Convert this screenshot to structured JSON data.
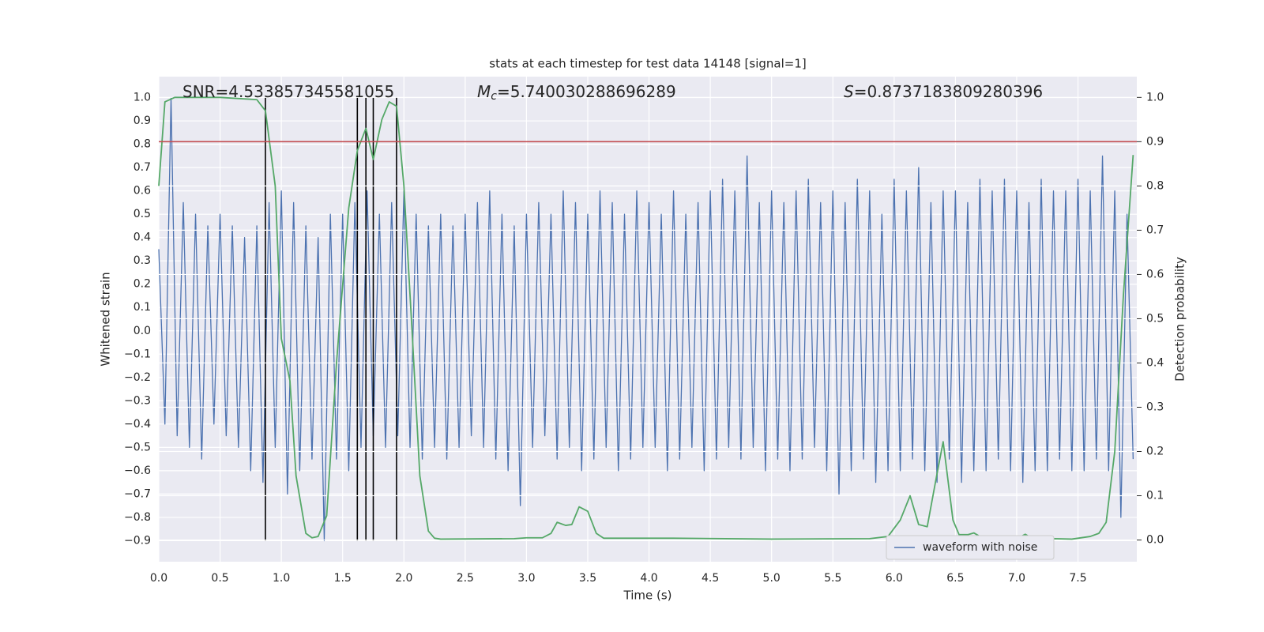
{
  "chart_data": {
    "type": "line",
    "title": "stats at each timestep for test data 14148 [signal=1]",
    "x_label": "Time (s)",
    "y_label": "Whitened strain",
    "y2_label": "Detection probability",
    "annotations": [
      {
        "text": "SNR=4.533857345581055"
      },
      {
        "symbol": "M",
        "subscript": "c",
        "text": "=5.740030288696289"
      },
      {
        "symbol": "S",
        "text": "=0.8737183809280396"
      }
    ],
    "xlim": [
      0,
      7.98
    ],
    "ylim": [
      -0.99,
      1.09
    ],
    "y2lim": [
      -0.049,
      1.047
    ],
    "xticks": [
      {
        "value": 0,
        "label": "0.0"
      },
      {
        "value": 0.5,
        "label": "0.5"
      },
      {
        "value": 1,
        "label": "1.0"
      },
      {
        "value": 1.5,
        "label": "1.5"
      },
      {
        "value": 2,
        "label": "2.0"
      },
      {
        "value": 2.5,
        "label": "2.5"
      },
      {
        "value": 3,
        "label": "3.0"
      },
      {
        "value": 3.5,
        "label": "3.5"
      },
      {
        "value": 4,
        "label": "4.0"
      },
      {
        "value": 4.5,
        "label": "4.5"
      },
      {
        "value": 5,
        "label": "5.0"
      },
      {
        "value": 5.5,
        "label": "5.5"
      },
      {
        "value": 6,
        "label": "6.0"
      },
      {
        "value": 6.5,
        "label": "6.5"
      },
      {
        "value": 7,
        "label": "7.0"
      },
      {
        "value": 7.5,
        "label": "7.5"
      }
    ],
    "yticks": [
      {
        "value": -0.9,
        "label": "−0.9"
      },
      {
        "value": -0.8,
        "label": "−0.8"
      },
      {
        "value": -0.7,
        "label": "−0.7"
      },
      {
        "value": -0.6,
        "label": "−0.6"
      },
      {
        "value": -0.5,
        "label": "−0.5"
      },
      {
        "value": -0.4,
        "label": "−0.4"
      },
      {
        "value": -0.3,
        "label": "−0.3"
      },
      {
        "value": -0.2,
        "label": "−0.2"
      },
      {
        "value": -0.1,
        "label": "−0.1"
      },
      {
        "value": 0,
        "label": "0.0"
      },
      {
        "value": 0.1,
        "label": "0.1"
      },
      {
        "value": 0.2,
        "label": "0.2"
      },
      {
        "value": 0.3,
        "label": "0.3"
      },
      {
        "value": 0.4,
        "label": "0.4"
      },
      {
        "value": 0.5,
        "label": "0.5"
      },
      {
        "value": 0.6,
        "label": "0.6"
      },
      {
        "value": 0.7,
        "label": "0.7"
      },
      {
        "value": 0.8,
        "label": "0.8"
      },
      {
        "value": 0.9,
        "label": "0.9"
      },
      {
        "value": 1,
        "label": "1.0"
      }
    ],
    "y2ticks": [
      {
        "value": 0,
        "label": "0.0"
      },
      {
        "value": 0.1,
        "label": "0.1"
      },
      {
        "value": 0.2,
        "label": "0.2"
      },
      {
        "value": 0.3,
        "label": "0.3"
      },
      {
        "value": 0.4,
        "label": "0.4"
      },
      {
        "value": 0.5,
        "label": "0.5"
      },
      {
        "value": 0.6,
        "label": "0.6"
      },
      {
        "value": 0.7,
        "label": "0.7"
      },
      {
        "value": 0.8,
        "label": "0.8"
      },
      {
        "value": 0.9,
        "label": "0.9"
      },
      {
        "value": 1,
        "label": "1.0"
      }
    ],
    "grid": true,
    "legend": "lower right",
    "threshold": 0.9,
    "threshold_color": "#c44e52",
    "vlines": [
      0.87,
      1.62,
      1.69,
      1.75,
      1.94
    ],
    "vline_color": "#000000",
    "series": [
      {
        "name": "waveform with noise",
        "color": "#4c72b0",
        "x": [
          0,
          0.05,
          0.1,
          0.15,
          0.2,
          0.25,
          0.3,
          0.35,
          0.4,
          0.45,
          0.5,
          0.55,
          0.6,
          0.65,
          0.7,
          0.75,
          0.8,
          0.85,
          0.9,
          0.95,
          1,
          1.05,
          1.1,
          1.15,
          1.2,
          1.25,
          1.3,
          1.35,
          1.4,
          1.45,
          1.5,
          1.55,
          1.6,
          1.65,
          1.7,
          1.75,
          1.8,
          1.85,
          1.9,
          1.95,
          2,
          2.05,
          2.1,
          2.15,
          2.2,
          2.25,
          2.3,
          2.35,
          2.4,
          2.45,
          2.5,
          2.55,
          2.6,
          2.65,
          2.7,
          2.75,
          2.8,
          2.85,
          2.9,
          2.95,
          3,
          3.05,
          3.1,
          3.15,
          3.2,
          3.25,
          3.3,
          3.35,
          3.4,
          3.45,
          3.5,
          3.55,
          3.6,
          3.65,
          3.7,
          3.75,
          3.8,
          3.85,
          3.9,
          3.95,
          4,
          4.05,
          4.1,
          4.15,
          4.2,
          4.25,
          4.3,
          4.35,
          4.4,
          4.45,
          4.5,
          4.55,
          4.6,
          4.65,
          4.7,
          4.75,
          4.8,
          4.85,
          4.9,
          4.95,
          5,
          5.05,
          5.1,
          5.15,
          5.2,
          5.25,
          5.3,
          5.35,
          5.4,
          5.45,
          5.5,
          5.55,
          5.6,
          5.65,
          5.7,
          5.75,
          5.8,
          5.85,
          5.9,
          5.95,
          6,
          6.05,
          6.1,
          6.15,
          6.2,
          6.25,
          6.3,
          6.35,
          6.4,
          6.45,
          6.5,
          6.55,
          6.6,
          6.65,
          6.7,
          6.75,
          6.8,
          6.85,
          6.9,
          6.95,
          7,
          7.05,
          7.1,
          7.15,
          7.2,
          7.25,
          7.3,
          7.35,
          7.4,
          7.45,
          7.5,
          7.55,
          7.6,
          7.65,
          7.7,
          7.75,
          7.8,
          7.85,
          7.9,
          7.95
        ],
        "values": [
          0.35,
          -0.4,
          1.0,
          -0.45,
          0.55,
          -0.5,
          0.5,
          -0.55,
          0.45,
          -0.4,
          0.5,
          -0.45,
          0.45,
          -0.5,
          0.4,
          -0.6,
          0.45,
          -0.65,
          0.55,
          -0.5,
          0.6,
          -0.7,
          0.55,
          -0.6,
          0.45,
          -0.55,
          0.4,
          -0.9,
          0.5,
          -0.55,
          0.5,
          -0.6,
          0.55,
          -0.5,
          0.6,
          -0.45,
          0.5,
          -0.5,
          0.55,
          -0.45,
          0.6,
          -0.5,
          0.5,
          -0.55,
          0.45,
          -0.5,
          0.5,
          -0.55,
          0.45,
          -0.5,
          0.5,
          -0.45,
          0.55,
          -0.5,
          0.6,
          -0.55,
          0.5,
          -0.6,
          0.45,
          -0.75,
          0.5,
          -0.5,
          0.55,
          -0.45,
          0.5,
          -0.55,
          0.6,
          -0.5,
          0.55,
          -0.6,
          0.5,
          -0.55,
          0.6,
          -0.5,
          0.55,
          -0.6,
          0.5,
          -0.55,
          0.6,
          -0.5,
          0.55,
          -0.5,
          0.5,
          -0.6,
          0.6,
          -0.55,
          0.5,
          -0.5,
          0.55,
          -0.6,
          0.6,
          -0.55,
          0.65,
          -0.5,
          0.6,
          -0.55,
          0.75,
          -0.5,
          0.55,
          -0.6,
          0.6,
          -0.55,
          0.55,
          -0.6,
          0.6,
          -0.55,
          0.65,
          -0.5,
          0.55,
          -0.6,
          0.6,
          -0.7,
          0.55,
          -0.6,
          0.65,
          -0.55,
          0.6,
          -0.65,
          0.5,
          -0.6,
          0.65,
          -0.6,
          0.6,
          -0.55,
          0.7,
          -0.6,
          0.55,
          -0.65,
          0.6,
          -0.55,
          0.6,
          -0.65,
          0.55,
          -0.6,
          0.65,
          -0.6,
          0.6,
          -0.55,
          0.65,
          -0.6,
          0.6,
          -0.65,
          0.55,
          -0.6,
          0.65,
          -0.6,
          0.6,
          -0.55,
          0.6,
          -0.6,
          0.65,
          -0.6,
          0.6,
          -0.55,
          0.75,
          -0.6,
          0.6,
          -0.8,
          0.5,
          -0.55
        ]
      },
      {
        "color": "#55a868",
        "axis": "y2",
        "x": [
          0,
          0.05,
          0.13,
          0.5,
          0.8,
          0.87,
          0.95,
          1,
          1.07,
          1.12,
          1.2,
          1.25,
          1.3,
          1.37,
          1.45,
          1.55,
          1.62,
          1.69,
          1.75,
          1.82,
          1.88,
          1.94,
          2,
          2.07,
          2.13,
          2.2,
          2.25,
          2.3,
          2.9,
          3,
          3.13,
          3.2,
          3.25,
          3.32,
          3.37,
          3.43,
          3.5,
          3.57,
          3.63,
          4.2,
          5,
          5.8,
          5.95,
          6.05,
          6.13,
          6.2,
          6.27,
          6.35,
          6.4,
          6.48,
          6.53,
          6.6,
          6.65,
          6.7,
          6.77,
          6.85,
          6.9,
          6.97,
          7,
          7.07,
          7.13,
          7.2,
          7.3,
          7.45,
          7.6,
          7.67,
          7.73,
          7.8,
          7.87,
          7.95
        ],
        "values": [
          0.8,
          0.99,
          1.0,
          1.0,
          0.995,
          0.97,
          0.8,
          0.455,
          0.36,
          0.145,
          0.015,
          0.005,
          0.008,
          0.055,
          0.4,
          0.75,
          0.88,
          0.93,
          0.86,
          0.95,
          0.99,
          0.98,
          0.8,
          0.455,
          0.145,
          0.02,
          0.004,
          0.002,
          0.003,
          0.005,
          0.005,
          0.015,
          0.04,
          0.033,
          0.035,
          0.075,
          0.065,
          0.015,
          0.004,
          0.004,
          0.002,
          0.003,
          0.008,
          0.045,
          0.1,
          0.035,
          0.03,
          0.15,
          0.222,
          0.045,
          0.012,
          0.012,
          0.016,
          0.008,
          0.004,
          0.005,
          0.006,
          0.002,
          0.003,
          0.013,
          0.003,
          0.002,
          0.003,
          0.002,
          0.008,
          0.015,
          0.04,
          0.2,
          0.55,
          0.87
        ]
      }
    ]
  }
}
